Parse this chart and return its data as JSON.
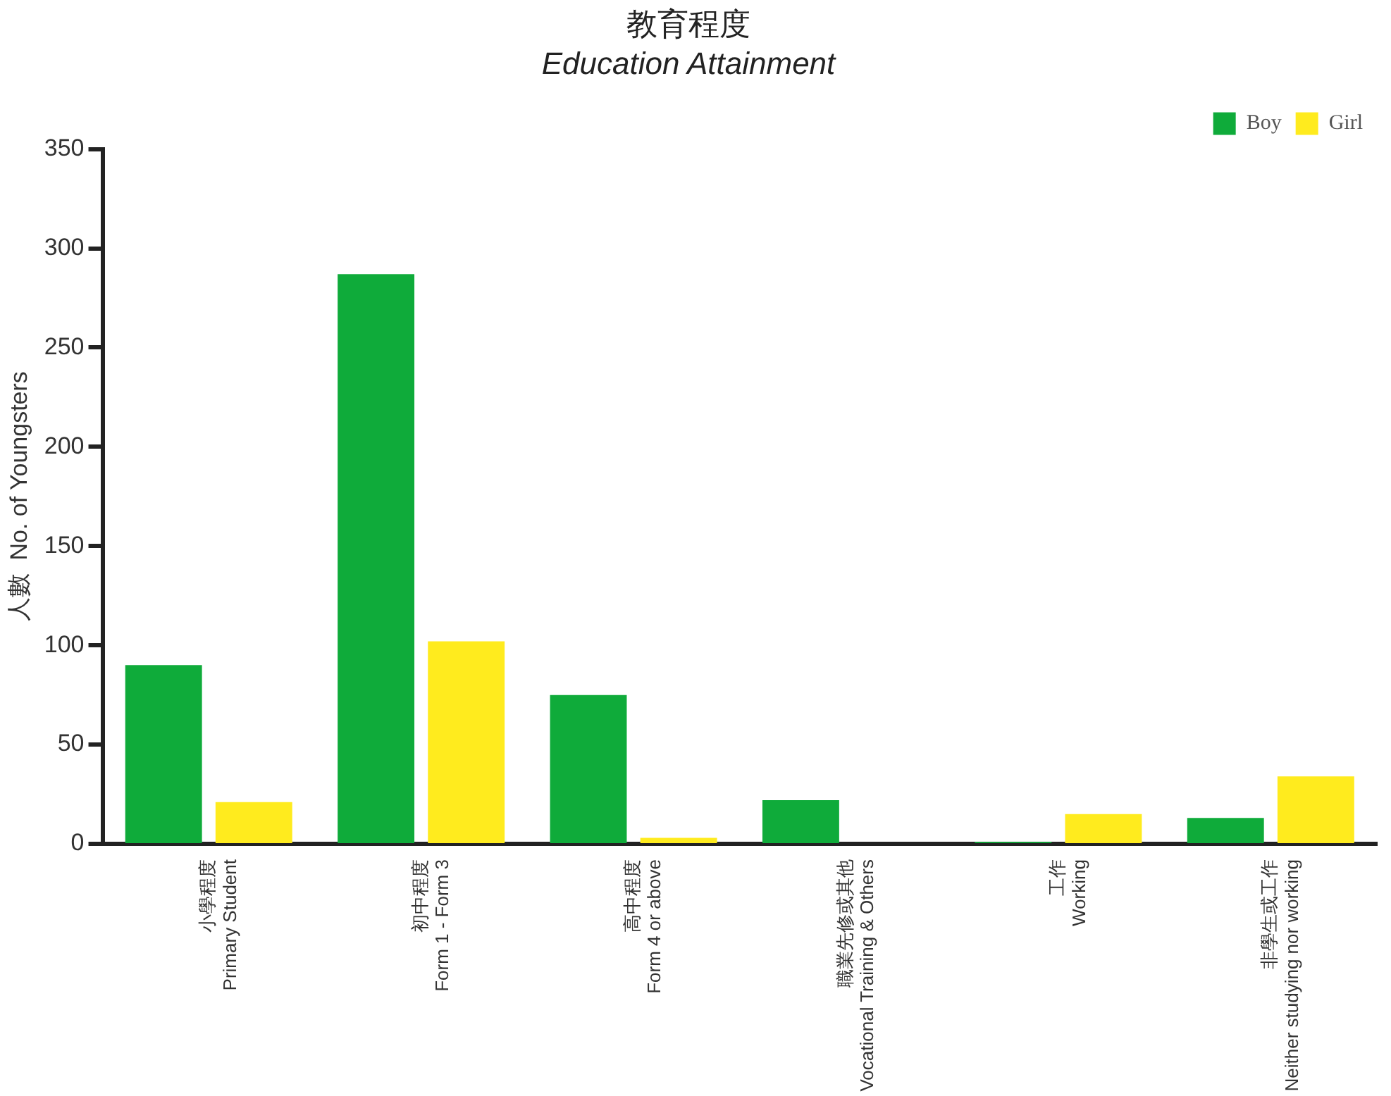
{
  "chart_data": {
    "type": "bar",
    "title": "教育程度",
    "subtitle": "Education Attainment",
    "ylabel": "人數  No. of Youngsters",
    "categories": [
      "小學程度\nPrimary Student",
      "初中程度\nForm 1 - Form 3",
      "高中程度\nForm 4 or above",
      "職業先修或其他\nVocational Training & Others",
      "工作\nWorking",
      "非學生或工作\nNeither studying nor working"
    ],
    "series": [
      {
        "name": "Boy",
        "color": "#0fab3a",
        "values": [
          90,
          287,
          75,
          22,
          1,
          13
        ]
      },
      {
        "name": "Girl",
        "color": "#ffeb1e",
        "values": [
          21,
          102,
          3,
          0,
          15,
          34
        ]
      }
    ],
    "ylim": [
      0,
      350
    ],
    "yticks": [
      0,
      50,
      100,
      150,
      200,
      250,
      300,
      350
    ],
    "grid": false,
    "legend": "top right"
  }
}
